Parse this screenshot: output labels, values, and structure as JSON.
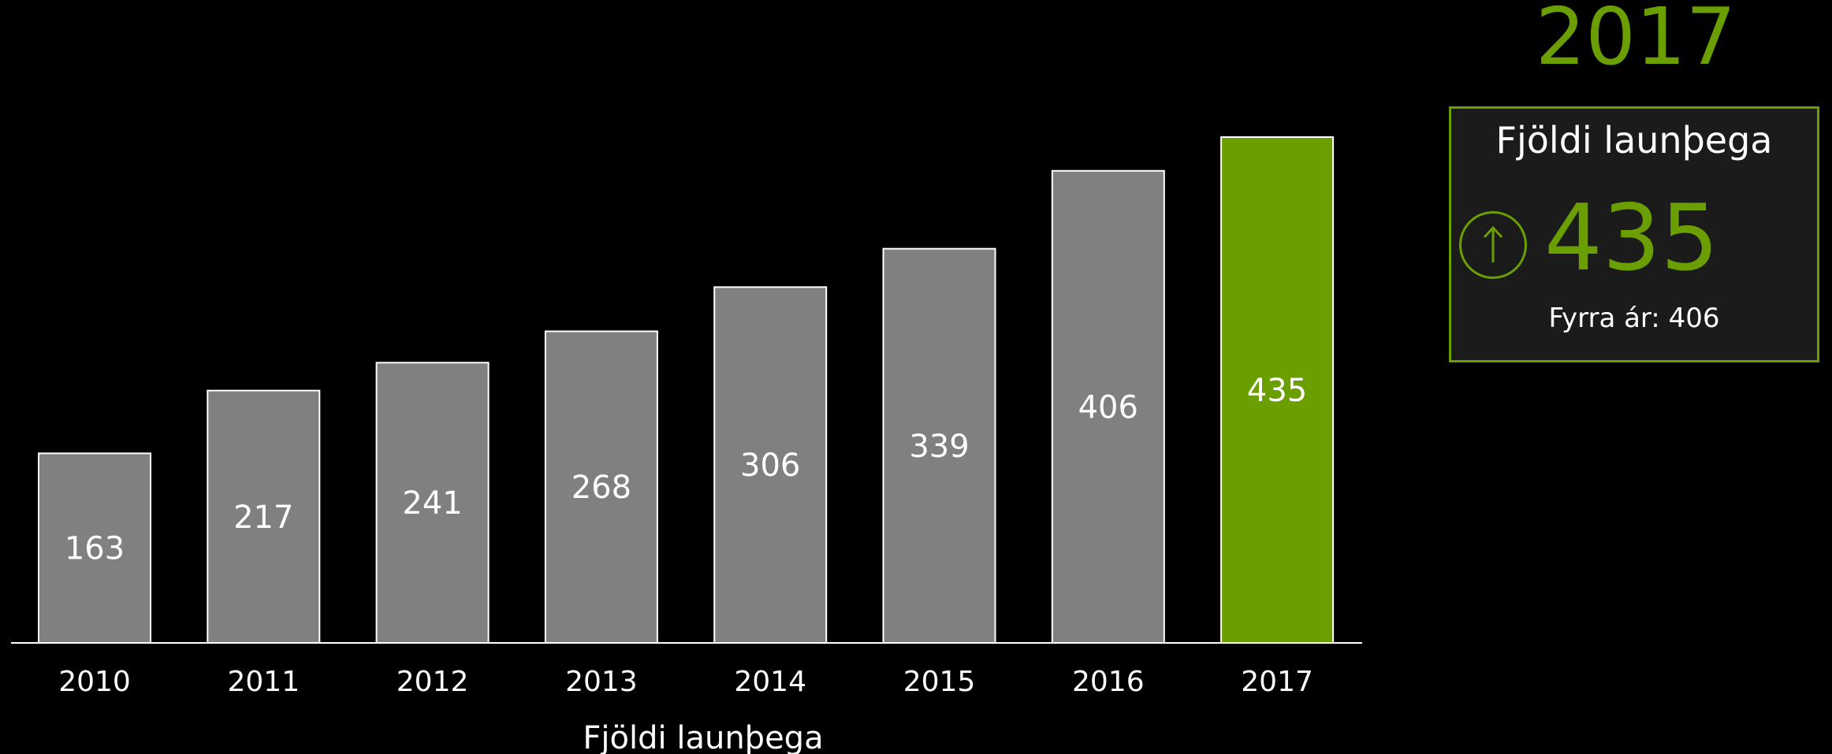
{
  "chart_data": {
    "type": "bar",
    "categories": [
      "2010",
      "2011",
      "2012",
      "2013",
      "2014",
      "2015",
      "2016",
      "2017"
    ],
    "values": [
      163,
      217,
      241,
      268,
      306,
      339,
      406,
      435
    ],
    "xlabel": "Fjöldi launþega",
    "ylim": [
      0,
      435
    ],
    "highlight_category": "2017",
    "colors": {
      "bar": "#808080",
      "highlight": "#6b9e00",
      "axis": "#ffffff",
      "background": "#000000"
    }
  },
  "kpi": {
    "year": "2017",
    "title": "Fjöldi launþega",
    "value": "435",
    "trend_icon": "arrow-up-circle-icon",
    "previous": "Fyrra ár: 406",
    "accent": "#6b9e00"
  }
}
